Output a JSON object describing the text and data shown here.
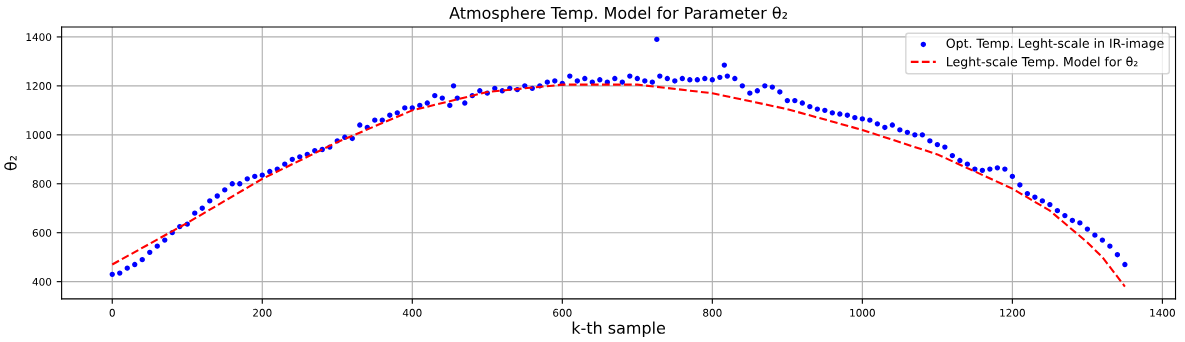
{
  "chart_data": {
    "type": "scatter",
    "title": "Atmosphere Temp. Model for Parameter θ₂",
    "xlabel": "k-th sample",
    "ylabel": "θ₂",
    "series": [
      {
        "name": "Opt. Temp. Leght-scale in IR-image",
        "color": "#0000ff",
        "marker": "circle",
        "x": [
          0,
          10,
          20,
          30,
          40,
          50,
          60,
          70,
          80,
          90,
          100,
          110,
          120,
          130,
          140,
          150,
          160,
          170,
          180,
          190,
          200,
          210,
          220,
          230,
          240,
          250,
          260,
          270,
          280,
          290,
          300,
          310,
          320,
          330,
          340,
          350,
          360,
          370,
          380,
          390,
          400,
          410,
          420,
          430,
          440,
          450,
          455,
          460,
          470,
          480,
          490,
          500,
          510,
          520,
          530,
          540,
          550,
          560,
          570,
          580,
          590,
          600,
          610,
          620,
          630,
          640,
          650,
          660,
          670,
          680,
          690,
          700,
          710,
          720,
          726,
          730,
          740,
          750,
          760,
          770,
          780,
          790,
          800,
          810,
          816,
          820,
          830,
          840,
          850,
          860,
          870,
          880,
          890,
          900,
          910,
          920,
          930,
          940,
          950,
          960,
          970,
          980,
          990,
          1000,
          1010,
          1020,
          1030,
          1040,
          1050,
          1060,
          1070,
          1080,
          1090,
          1100,
          1110,
          1120,
          1130,
          1140,
          1150,
          1160,
          1170,
          1180,
          1190,
          1200,
          1210,
          1220,
          1230,
          1240,
          1250,
          1260,
          1270,
          1280,
          1290,
          1300,
          1310,
          1320,
          1330,
          1340,
          1350
        ],
        "values": [
          430,
          435,
          455,
          470,
          490,
          520,
          545,
          570,
          600,
          625,
          635,
          680,
          700,
          730,
          750,
          775,
          800,
          800,
          820,
          830,
          835,
          850,
          860,
          880,
          900,
          910,
          920,
          935,
          940,
          950,
          975,
          990,
          985,
          1040,
          1030,
          1060,
          1060,
          1080,
          1090,
          1110,
          1110,
          1120,
          1130,
          1160,
          1150,
          1120,
          1200,
          1150,
          1130,
          1160,
          1180,
          1170,
          1190,
          1180,
          1190,
          1185,
          1200,
          1190,
          1200,
          1215,
          1220,
          1210,
          1240,
          1220,
          1230,
          1215,
          1225,
          1215,
          1230,
          1215,
          1240,
          1230,
          1220,
          1215,
          1390,
          1240,
          1230,
          1220,
          1230,
          1225,
          1225,
          1230,
          1225,
          1235,
          1285,
          1240,
          1230,
          1200,
          1170,
          1180,
          1200,
          1195,
          1175,
          1140,
          1140,
          1130,
          1115,
          1105,
          1100,
          1090,
          1085,
          1080,
          1070,
          1065,
          1060,
          1045,
          1030,
          1040,
          1020,
          1010,
          1000,
          1000,
          975,
          960,
          950,
          915,
          895,
          880,
          860,
          855,
          860,
          865,
          860,
          830,
          795,
          760,
          745,
          730,
          715,
          690,
          670,
          650,
          640,
          615,
          590,
          570,
          545,
          510,
          470
        ]
      },
      {
        "name": "Leght-scale Temp. Model for θ₂",
        "color": "#ff0000",
        "type": "line",
        "line_style": "dashed",
        "marker": "none",
        "x": [
          0,
          100,
          200,
          300,
          400,
          500,
          600,
          700,
          800,
          900,
          1000,
          1100,
          1200,
          1250,
          1300,
          1320,
          1350
        ],
        "values": [
          470,
          640,
          820,
          970,
          1100,
          1175,
          1205,
          1205,
          1170,
          1105,
          1020,
          920,
          780,
          690,
          560,
          500,
          380
        ]
      }
    ],
    "xlim": [
      -67.5,
      1417.5
    ],
    "ylim": [
      329.5,
      1440.5
    ],
    "xticks": [
      0,
      200,
      400,
      600,
      800,
      1000,
      1200,
      1400
    ],
    "yticks": [
      400,
      600,
      800,
      1000,
      1200,
      1400
    ],
    "grid": true,
    "legend": "top right"
  }
}
